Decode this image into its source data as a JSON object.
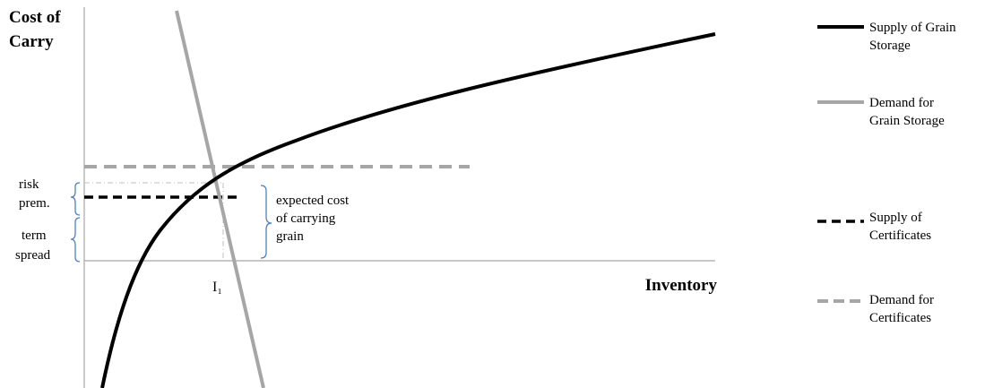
{
  "axes": {
    "y_title_line1": "Cost of",
    "y_title_line2": "Carry",
    "x_title": "Inventory",
    "x_marker": "I₁"
  },
  "annotations": {
    "risk_premium_line1": "risk",
    "risk_premium_line2": "prem.",
    "term_spread_line1": "term",
    "term_spread_line2": "spread",
    "expected_cost_line1": "expected cost",
    "expected_cost_line2": "of carrying",
    "expected_cost_line3": "grain"
  },
  "legend": [
    {
      "line1": "Supply of Grain",
      "line2": "Storage",
      "color": "#000000",
      "style": "solid"
    },
    {
      "line1": "Demand for",
      "line2": "Grain Storage",
      "color": "#a6a6a6",
      "style": "solid"
    },
    {
      "line1": "Supply of",
      "line2": "Certificates",
      "color": "#000000",
      "style": "dashed"
    },
    {
      "line1": "Demand for",
      "line2": "Certificates",
      "color": "#a6a6a6",
      "style": "dashed"
    }
  ],
  "colors": {
    "black": "#000000",
    "gray": "#a6a6a6",
    "bracket_blue": "#4f81bd"
  }
}
